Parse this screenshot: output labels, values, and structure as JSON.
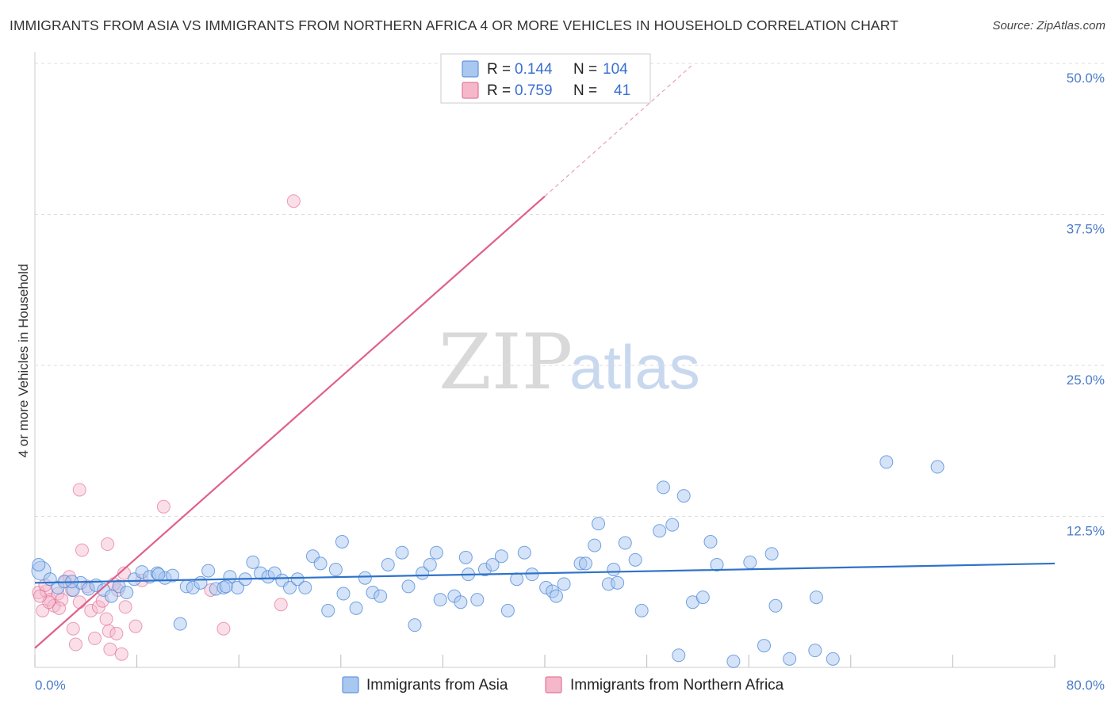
{
  "header": {
    "title": "IMMIGRANTS FROM ASIA VS IMMIGRANTS FROM NORTHERN AFRICA 4 OR MORE VEHICLES IN HOUSEHOLD CORRELATION CHART",
    "source": "Source: ZipAtlas.com"
  },
  "watermark": {
    "zip": "ZIP",
    "atlas": "atlas"
  },
  "colors": {
    "asia": "#4a86d8",
    "asia_fill": "#a9c8f0",
    "africa": "#e0608a",
    "africa_fill": "#f5b8cb",
    "grid": "#dddddd",
    "tick_text": "#4a7bc8"
  },
  "legend": {
    "items": [
      {
        "r_label": "R =",
        "r_value": "0.144",
        "n_label": "N =",
        "n_value": "104"
      },
      {
        "r_label": "R =",
        "r_value": "0.759",
        "n_label": "N =",
        "n_value": "41"
      }
    ]
  },
  "chart_data": {
    "type": "scatter",
    "xlabel": "",
    "ylabel": "4 or more Vehicles in Household",
    "xlim": [
      0,
      80
    ],
    "ylim": [
      0,
      50
    ],
    "x_tick_labels": [
      "0.0%",
      "80.0%"
    ],
    "y_ticks": [
      12.5,
      25.0,
      37.5,
      50.0
    ],
    "y_tick_labels": [
      "12.5%",
      "25.0%",
      "37.5%",
      "50.0%"
    ],
    "grid": true,
    "legend_position": "top-center",
    "series": [
      {
        "name": "Immigrants from Asia",
        "r": 0.144,
        "n": 104,
        "trend": {
          "x": [
            0,
            80
          ],
          "y": [
            7.0,
            8.6
          ]
        },
        "points": [
          [
            0.5,
            8.0
          ],
          [
            1.2,
            7.3
          ],
          [
            1.8,
            6.6
          ],
          [
            2.3,
            7.1
          ],
          [
            3.0,
            6.4
          ],
          [
            3.6,
            7.0
          ],
          [
            4.2,
            6.5
          ],
          [
            4.8,
            6.8
          ],
          [
            5.4,
            6.4
          ],
          [
            6.0,
            5.9
          ],
          [
            6.6,
            6.7
          ],
          [
            7.2,
            6.2
          ],
          [
            7.8,
            7.3
          ],
          [
            8.4,
            7.9
          ],
          [
            9.0,
            7.5
          ],
          [
            9.6,
            7.8
          ],
          [
            10.2,
            7.4
          ],
          [
            10.8,
            7.6
          ],
          [
            11.4,
            3.6
          ],
          [
            11.9,
            6.7
          ],
          [
            12.4,
            6.6
          ],
          [
            13.0,
            7.0
          ],
          [
            13.6,
            8.0
          ],
          [
            14.2,
            6.5
          ],
          [
            14.8,
            6.6
          ],
          [
            15.3,
            7.5
          ],
          [
            15.9,
            6.6
          ],
          [
            16.5,
            7.3
          ],
          [
            17.1,
            8.7
          ],
          [
            17.7,
            7.8
          ],
          [
            18.3,
            7.5
          ],
          [
            18.8,
            7.8
          ],
          [
            19.4,
            7.2
          ],
          [
            20.0,
            6.6
          ],
          [
            20.6,
            7.3
          ],
          [
            21.2,
            6.6
          ],
          [
            21.8,
            9.2
          ],
          [
            22.4,
            8.6
          ],
          [
            23.0,
            4.7
          ],
          [
            23.6,
            8.1
          ],
          [
            24.2,
            6.1
          ],
          [
            24.1,
            10.4
          ],
          [
            25.2,
            4.9
          ],
          [
            25.9,
            7.4
          ],
          [
            26.5,
            6.2
          ],
          [
            27.1,
            5.9
          ],
          [
            27.7,
            8.5
          ],
          [
            28.8,
            9.5
          ],
          [
            29.3,
            6.7
          ],
          [
            29.8,
            3.5
          ],
          [
            30.4,
            7.8
          ],
          [
            31.0,
            8.5
          ],
          [
            31.5,
            9.5
          ],
          [
            31.8,
            5.6
          ],
          [
            32.9,
            5.9
          ],
          [
            33.4,
            5.4
          ],
          [
            33.8,
            9.1
          ],
          [
            34.7,
            5.6
          ],
          [
            35.3,
            8.1
          ],
          [
            35.9,
            8.5
          ],
          [
            36.6,
            9.2
          ],
          [
            37.1,
            4.7
          ],
          [
            37.8,
            7.3
          ],
          [
            38.4,
            9.5
          ],
          [
            39.0,
            7.7
          ],
          [
            40.1,
            6.6
          ],
          [
            40.6,
            6.3
          ],
          [
            40.9,
            5.9
          ],
          [
            41.5,
            6.9
          ],
          [
            42.8,
            8.6
          ],
          [
            43.2,
            8.6
          ],
          [
            43.9,
            10.1
          ],
          [
            44.2,
            11.9
          ],
          [
            45.0,
            6.9
          ],
          [
            45.4,
            8.1
          ],
          [
            45.7,
            7.0
          ],
          [
            46.3,
            10.3
          ],
          [
            47.1,
            8.9
          ],
          [
            47.6,
            4.7
          ],
          [
            49.0,
            11.3
          ],
          [
            49.3,
            14.9
          ],
          [
            50.0,
            11.8
          ],
          [
            50.5,
            1.0
          ],
          [
            50.9,
            14.2
          ],
          [
            51.6,
            5.4
          ],
          [
            52.4,
            5.8
          ],
          [
            53.0,
            10.4
          ],
          [
            53.5,
            8.5
          ],
          [
            54.8,
            0.5
          ],
          [
            56.1,
            8.7
          ],
          [
            57.2,
            1.8
          ],
          [
            57.8,
            9.4
          ],
          [
            58.1,
            5.1
          ],
          [
            59.2,
            0.7
          ],
          [
            61.2,
            1.4
          ],
          [
            61.3,
            5.8
          ],
          [
            62.6,
            0.7
          ],
          [
            66.8,
            17.0
          ],
          [
            70.8,
            16.6
          ],
          [
            0.3,
            8.5
          ],
          [
            2.9,
            7.1
          ],
          [
            9.7,
            7.7
          ],
          [
            15.0,
            6.7
          ],
          [
            34.0,
            7.7
          ]
        ]
      },
      {
        "name": "Immigrants from Northern Africa",
        "r": 0.759,
        "n": 41,
        "trend": {
          "x": [
            0,
            40
          ],
          "y": [
            1.6,
            39.0
          ]
        },
        "trend_extension": {
          "x": [
            40,
            51.5
          ],
          "y": [
            39.0,
            49.8
          ]
        },
        "points": [
          [
            0.3,
            6.2
          ],
          [
            0.6,
            4.7
          ],
          [
            0.9,
            6.3
          ],
          [
            1.2,
            5.6
          ],
          [
            1.5,
            5.1
          ],
          [
            1.8,
            6.1
          ],
          [
            2.1,
            5.6
          ],
          [
            2.4,
            7.1
          ],
          [
            2.7,
            7.5
          ],
          [
            3.0,
            3.2
          ],
          [
            3.2,
            1.9
          ],
          [
            3.5,
            5.4
          ],
          [
            3.7,
            9.7
          ],
          [
            3.5,
            14.7
          ],
          [
            4.1,
            6.7
          ],
          [
            4.4,
            4.7
          ],
          [
            4.7,
            2.4
          ],
          [
            5.0,
            5.0
          ],
          [
            5.3,
            5.5
          ],
          [
            5.6,
            4.0
          ],
          [
            5.8,
            3.0
          ],
          [
            5.9,
            1.5
          ],
          [
            5.7,
            10.2
          ],
          [
            6.5,
            6.4
          ],
          [
            6.4,
            2.8
          ],
          [
            6.8,
            1.1
          ],
          [
            7.1,
            5.0
          ],
          [
            7.0,
            7.8
          ],
          [
            7.9,
            3.4
          ],
          [
            8.4,
            7.2
          ],
          [
            10.1,
            13.3
          ],
          [
            13.8,
            6.4
          ],
          [
            14.8,
            3.2
          ],
          [
            19.3,
            5.2
          ],
          [
            20.3,
            38.6
          ],
          [
            0.8,
            6.8
          ],
          [
            1.1,
            5.4
          ],
          [
            1.9,
            4.9
          ],
          [
            2.9,
            6.4
          ],
          [
            6.2,
            6.9
          ],
          [
            0.4,
            5.9
          ]
        ]
      }
    ]
  },
  "bottom_legend": {
    "items": [
      {
        "label": "Immigrants from Asia"
      },
      {
        "label": "Immigrants from Northern Africa"
      }
    ]
  }
}
